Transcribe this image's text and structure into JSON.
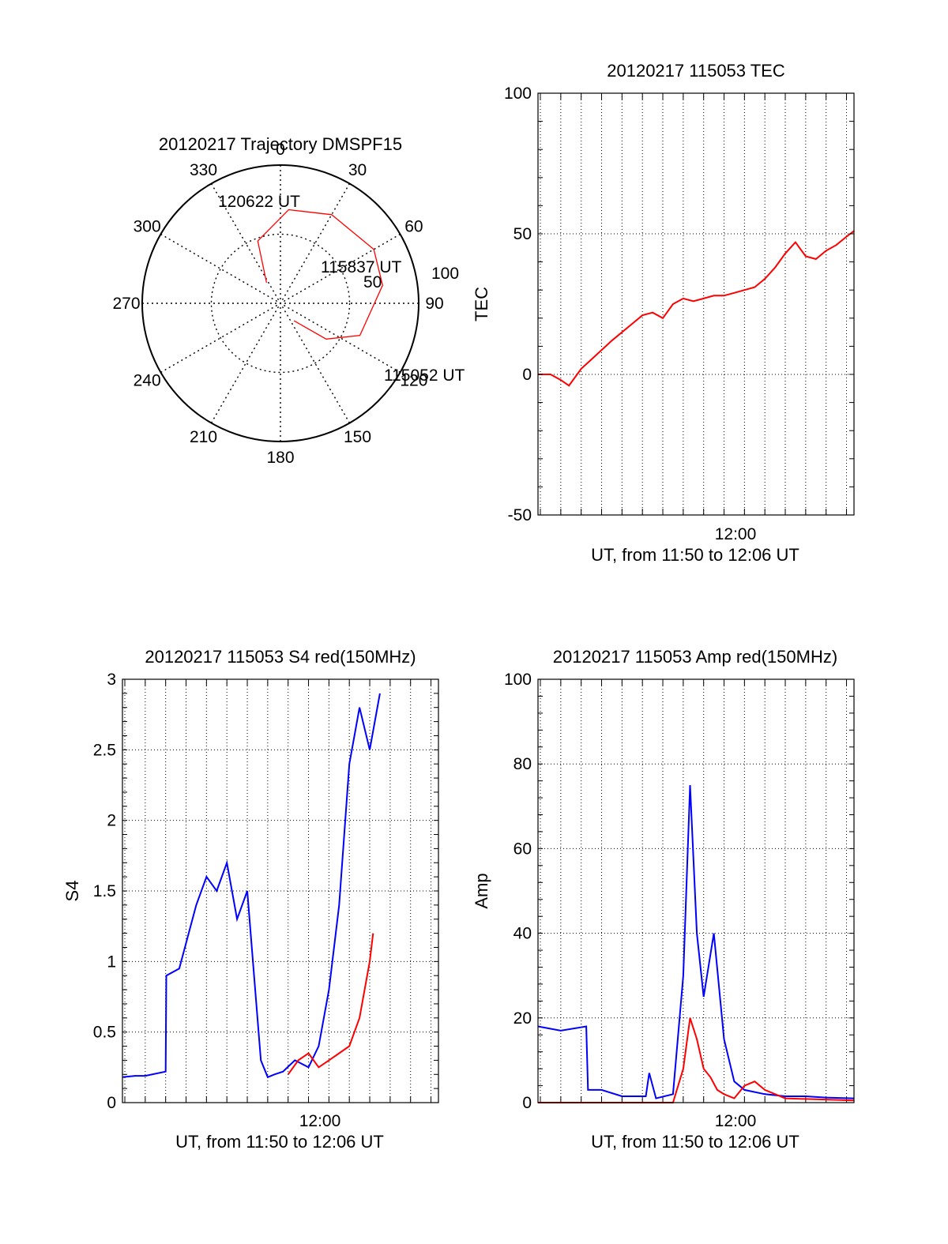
{
  "chart_data": [
    {
      "id": "trajectory",
      "type": "scatter",
      "projection": "polar",
      "title": "20120217 Trajectory DMSPF15",
      "radial_range": [
        0,
        100
      ],
      "radial_labels": [
        "50",
        "100"
      ],
      "angle_labels": [
        "0",
        "30",
        "60",
        "90",
        "120",
        "150",
        "180",
        "210",
        "240",
        "270",
        "300",
        "330"
      ],
      "grid": true,
      "series": [
        {
          "color": "#ff0000",
          "points": [
            {
              "az": 142,
              "el": 84
            },
            {
              "az": 128,
              "el": 58
            },
            {
              "az": 112,
              "el": 38
            },
            {
              "az": 80,
              "el": 25
            },
            {
              "az": 60,
              "el": 22
            },
            {
              "az": 30,
              "el": 26
            },
            {
              "az": 5,
              "el": 32
            },
            {
              "az": 340,
              "el": 52
            },
            {
              "az": 326,
              "el": 82
            }
          ]
        }
      ],
      "annotations": [
        "120622 UT",
        "115837 UT",
        "115052 UT"
      ]
    },
    {
      "id": "tec",
      "type": "line",
      "title": "20120217 115053 TEC",
      "ylabel": "TEC",
      "xlabel": "UT, from 11:50 to 12:06 UT",
      "xlim": [
        "11:50:53",
        "12:06:22"
      ],
      "ylim": [
        -50,
        100
      ],
      "yticks": [
        "-50",
        "0",
        "50",
        "100"
      ],
      "xticks": [
        "12:00"
      ],
      "grid": true,
      "series": [
        {
          "color": "#ff0000",
          "x": [
            "11:50:53",
            "11:51:30",
            "11:52:00",
            "11:52:24",
            "11:53:00",
            "11:53:45",
            "11:54:30",
            "11:55:30",
            "11:56:00",
            "11:56:30",
            "11:57:00",
            "11:57:30",
            "11:58:00",
            "11:58:30",
            "11:59:00",
            "11:59:30",
            "12:00:00",
            "12:00:30",
            "12:01:00",
            "12:01:30",
            "12:02:00",
            "12:02:30",
            "12:03:00",
            "12:03:30",
            "12:04:00",
            "12:04:30",
            "12:05:00",
            "12:05:30",
            "12:06:00",
            "12:06:22"
          ],
          "values": [
            0,
            0,
            -2,
            -4,
            2,
            7,
            12,
            18,
            21,
            22,
            20,
            25,
            27,
            26,
            27,
            28,
            28,
            29,
            30,
            31,
            34,
            38,
            43,
            47,
            42,
            41,
            44,
            46,
            49,
            51
          ]
        }
      ]
    },
    {
      "id": "s4",
      "type": "line",
      "title": "20120217 115053 S4 red(150MHz)",
      "ylabel": "S4",
      "xlabel": "UT, from 11:50 to 12:06 UT",
      "xlim": [
        "11:50:53",
        "12:06:22"
      ],
      "ylim": [
        0,
        3
      ],
      "yticks": [
        "0",
        "0.5",
        "1",
        "1.5",
        "2",
        "2.5",
        "3"
      ],
      "xticks": [
        "12:00"
      ],
      "grid": true,
      "series": [
        {
          "color": "#0000ff",
          "x": [
            "11:50:53",
            "11:51:30",
            "11:52:00",
            "11:53:00",
            "11:53:02",
            "11:53:40",
            "11:54:30",
            "11:55:00",
            "11:55:30",
            "11:56:00",
            "11:56:30",
            "11:57:00",
            "11:57:20",
            "11:57:40",
            "11:58:00",
            "11:58:20",
            "11:58:45",
            "11:59:20",
            "12:00:00",
            "12:00:30",
            "12:01:00",
            "12:01:30",
            "12:02:00",
            "12:02:30",
            "12:03:00",
            "12:03:30"
          ],
          "values": [
            0.18,
            0.19,
            0.19,
            0.22,
            0.9,
            0.95,
            1.4,
            1.6,
            1.5,
            1.7,
            1.3,
            1.5,
            0.9,
            0.3,
            0.18,
            0.2,
            0.22,
            0.3,
            0.25,
            0.4,
            0.8,
            1.4,
            2.4,
            2.8,
            2.5,
            2.9
          ]
        },
        {
          "color": "#ff0000",
          "x": [
            "11:59:00",
            "11:59:30",
            "12:00:00",
            "12:00:30",
            "12:01:00",
            "12:01:30",
            "12:02:00",
            "12:02:30",
            "12:03:00",
            "12:03:10"
          ],
          "values": [
            0.2,
            0.3,
            0.35,
            0.25,
            0.3,
            0.35,
            0.4,
            0.6,
            1.0,
            1.2
          ]
        }
      ]
    },
    {
      "id": "amp",
      "type": "line",
      "title": "20120217 115053 Amp red(150MHz)",
      "ylabel": "Amp",
      "xlabel": "UT, from 11:50 to 12:06 UT",
      "xlim": [
        "11:50:53",
        "12:06:22"
      ],
      "ylim": [
        0,
        100
      ],
      "yticks": [
        "0",
        "20",
        "40",
        "60",
        "80",
        "100"
      ],
      "xticks": [
        "12:00"
      ],
      "grid": true,
      "series": [
        {
          "color": "#0000ff",
          "x": [
            "11:50:53",
            "11:52:00",
            "11:53:15",
            "11:53:20",
            "11:54:00",
            "11:55:00",
            "11:56:10",
            "11:56:20",
            "11:56:40",
            "11:57:30",
            "11:58:00",
            "11:58:20",
            "11:58:40",
            "11:59:00",
            "11:59:30",
            "12:00:00",
            "12:00:30",
            "12:01:00",
            "12:02:00",
            "12:03:00",
            "12:04:00",
            "12:05:00",
            "12:06:22"
          ],
          "values": [
            18,
            17,
            18,
            3,
            3,
            1.5,
            1.5,
            7,
            1,
            2,
            30,
            75,
            40,
            25,
            40,
            15,
            5,
            3,
            2,
            1.5,
            1.5,
            1.2,
            1
          ]
        },
        {
          "color": "#ff0000",
          "x": [
            "11:50:53",
            "11:53:00",
            "11:57:30",
            "11:58:00",
            "11:58:20",
            "11:58:40",
            "11:59:00",
            "11:59:20",
            "11:59:40",
            "12:00:00",
            "12:00:30",
            "12:01:00",
            "12:01:30",
            "12:02:00",
            "12:03:00",
            "12:06:22"
          ],
          "values": [
            0,
            0,
            0,
            8,
            20,
            15,
            8,
            6,
            3,
            2,
            1,
            4,
            5,
            3,
            1,
            0.5
          ]
        }
      ]
    }
  ]
}
